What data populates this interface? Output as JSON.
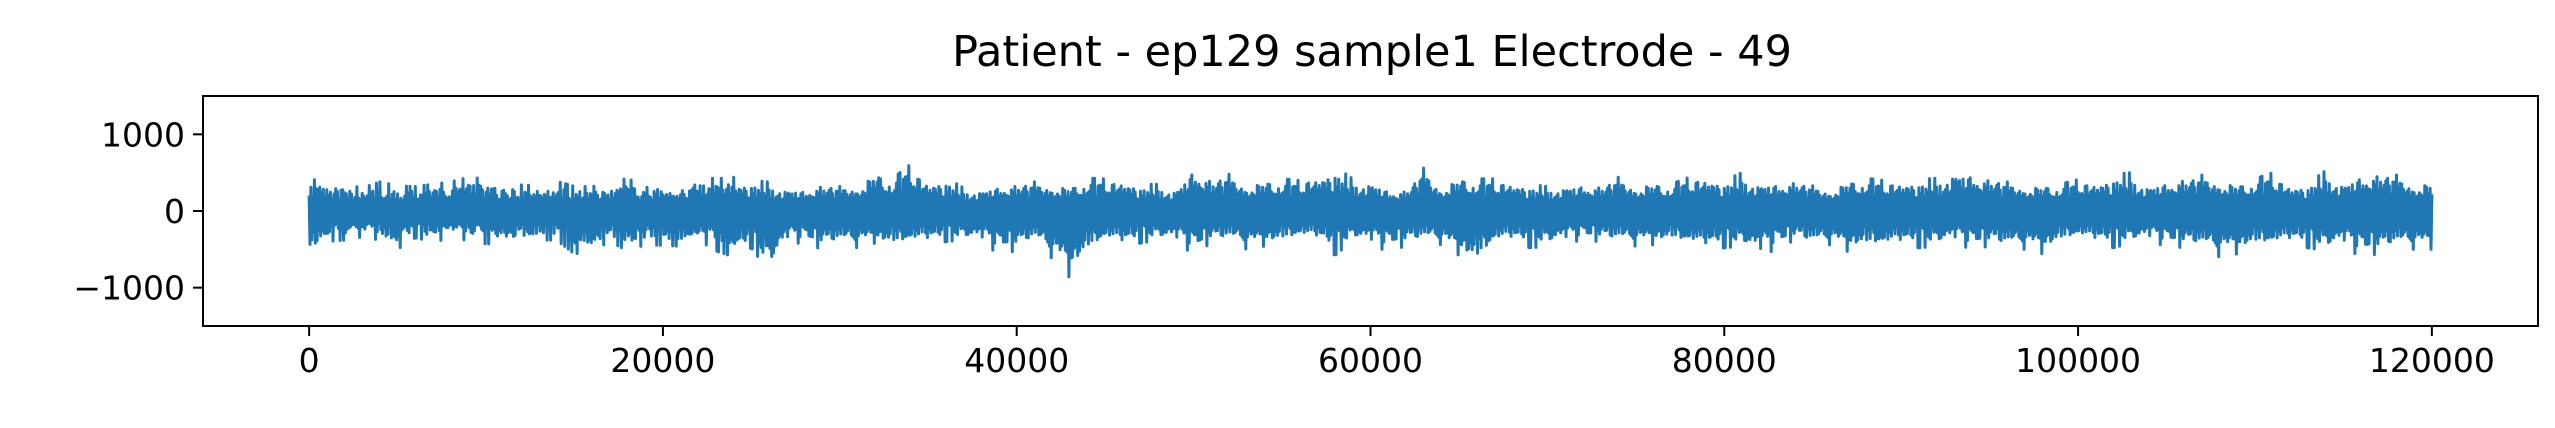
{
  "chart_data": {
    "type": "line",
    "title": "Patient - ep129 sample1 Electrode - 49",
    "xlabel": "",
    "ylabel": "",
    "xlim": [
      -6000,
      126000
    ],
    "ylim": [
      -1500,
      1500
    ],
    "x_ticks": [
      0,
      20000,
      40000,
      60000,
      80000,
      100000,
      120000
    ],
    "x_tick_labels": [
      "0",
      "20000",
      "40000",
      "60000",
      "80000",
      "100000",
      "120000"
    ],
    "y_ticks": [
      1000,
      0,
      -1000
    ],
    "y_tick_labels": [
      "1000",
      "0",
      "−1000"
    ],
    "grid": false,
    "legend": "none",
    "series": [
      {
        "color": "#1f77b4",
        "x_start": 0,
        "x_end": 120000,
        "envelope_step": 1000,
        "upper": [
          420,
          380,
          350,
          300,
          380,
          330,
          320,
          350,
          380,
          440,
          420,
          360,
          340,
          330,
          390,
          320,
          320,
          360,
          430,
          300,
          400,
          360,
          450,
          420,
          440,
          400,
          380,
          340,
          300,
          420,
          320,
          400,
          580,
          430,
          610,
          450,
          440,
          300,
          320,
          360,
          430,
          380,
          420,
          360,
          430,
          420,
          480,
          350,
          350,
          320,
          620,
          500,
          480,
          420,
          450,
          420,
          400,
          550,
          580,
          420,
          450,
          300,
          330,
          560,
          380,
          500,
          420,
          420,
          450,
          350,
          320,
          380,
          380,
          400,
          440,
          400,
          420,
          350,
          440,
          530,
          400,
          500,
          420,
          400,
          480,
          330,
          340,
          450,
          430,
          400,
          460,
          410,
          430,
          600,
          540,
          520,
          380,
          400,
          380,
          350,
          410,
          450,
          480,
          500,
          380,
          420,
          520,
          470,
          490,
          400,
          420,
          500,
          400,
          360,
          530,
          420,
          520,
          600,
          470,
          430
        ],
        "lower": [
          -620,
          -400,
          -380,
          -340,
          -380,
          -500,
          -350,
          -400,
          -360,
          -380,
          -430,
          -420,
          -420,
          -380,
          -380,
          -560,
          -520,
          -400,
          -520,
          -440,
          -450,
          -460,
          -380,
          -520,
          -600,
          -480,
          -800,
          -420,
          -420,
          -500,
          -440,
          -480,
          -420,
          -480,
          -460,
          -440,
          -400,
          -380,
          -420,
          -560,
          -520,
          -400,
          -620,
          -870,
          -560,
          -420,
          -480,
          -420,
          -380,
          -420,
          -560,
          -420,
          -400,
          -500,
          -460,
          -420,
          -380,
          -400,
          -580,
          -380,
          -460,
          -520,
          -460,
          -400,
          -440,
          -580,
          -720,
          -460,
          -420,
          -480,
          -460,
          -420,
          -380,
          -400,
          -420,
          -460,
          -440,
          -400,
          -480,
          -530,
          -480,
          -460,
          -620,
          -480,
          -380,
          -460,
          -440,
          -530,
          -480,
          -520,
          -470,
          -480,
          -460,
          -420,
          -500,
          -460,
          -500,
          -500,
          -560,
          -420,
          -380,
          -440,
          -480,
          -420,
          -400,
          -460,
          -480,
          -500,
          -600,
          -560,
          -470,
          -500,
          -440,
          -480,
          -520,
          -470,
          -600,
          -560,
          -480,
          -500
        ],
        "noise_seed": 129
      }
    ]
  }
}
